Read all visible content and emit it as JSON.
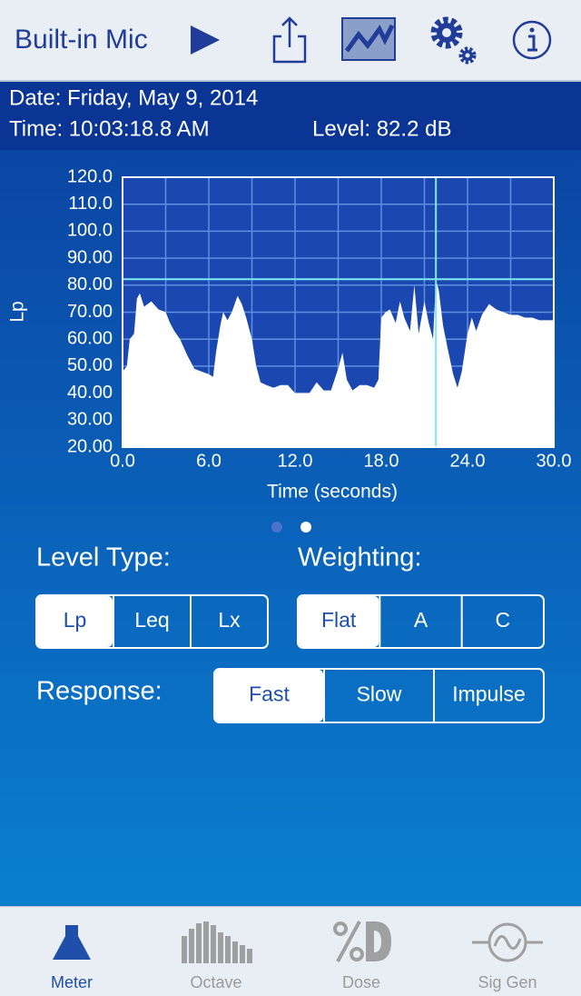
{
  "header": {
    "source": "Built-in Mic"
  },
  "info": {
    "date": "Date: Friday, May 9, 2014",
    "time": "Time: 10:03:18.8 AM",
    "level": "Level: 82.2 dB"
  },
  "chart_data": {
    "type": "area",
    "y_label": "Lp",
    "x_label": "Time (seconds)",
    "x": [
      0,
      0.3,
      0.5,
      0.8,
      1.0,
      1.2,
      1.5,
      2,
      2.5,
      3,
      3.3,
      3.6,
      4,
      4.5,
      5,
      5.5,
      6,
      6.3,
      6.5,
      6.8,
      7,
      7.3,
      7.6,
      8,
      8.3,
      8.6,
      9,
      9.3,
      9.6,
      10,
      10.5,
      11,
      11.5,
      12,
      12.5,
      13,
      13.5,
      14,
      14.5,
      15,
      15.3,
      15.6,
      16,
      16.5,
      17,
      17.5,
      17.8,
      18,
      18.3,
      18.6,
      19,
      19.3,
      19.6,
      20,
      20.3,
      20.6,
      21,
      21.3,
      21.6,
      21.8,
      22,
      22.3,
      22.6,
      23,
      23.3,
      23.6,
      24,
      24.3,
      24.6,
      25,
      25.5,
      26,
      26.5,
      27,
      27.5,
      28,
      28.5,
      29,
      29.5,
      30
    ],
    "values": [
      48,
      50,
      60,
      62,
      75,
      77,
      72,
      74,
      71,
      70,
      66,
      63,
      60,
      54,
      49,
      48,
      47,
      46,
      55,
      65,
      70,
      67,
      70,
      76,
      73,
      68,
      60,
      50,
      44,
      43,
      42,
      43,
      43,
      40,
      40,
      40,
      44,
      41,
      41,
      49,
      55,
      45,
      41,
      43,
      43,
      42,
      45,
      68,
      70,
      71,
      66,
      74,
      68,
      63,
      80,
      62,
      74,
      66,
      60,
      82,
      78,
      65,
      57,
      47,
      42,
      48,
      62,
      68,
      63,
      69,
      73,
      71,
      70,
      69,
      69,
      68,
      68,
      67,
      67,
      67
    ],
    "color": "#ffffff",
    "xlim": [
      0,
      30
    ],
    "ylim": [
      20,
      120
    ],
    "xticks": [
      {
        "value": 0,
        "label": "0.0"
      },
      {
        "value": 6,
        "label": "6.0"
      },
      {
        "value": 12,
        "label": "12.0"
      },
      {
        "value": 18,
        "label": "18.0"
      },
      {
        "value": 24,
        "label": "24.0"
      },
      {
        "value": 30,
        "label": "30.0"
      }
    ],
    "xminorticks": [
      3,
      9,
      15,
      21,
      27
    ],
    "yticks": [
      {
        "value": 120,
        "label": "120.0"
      },
      {
        "value": 110,
        "label": "110.0"
      },
      {
        "value": 100,
        "label": "100.0"
      },
      {
        "value": 90,
        "label": "90.00"
      },
      {
        "value": 80,
        "label": "80.00"
      },
      {
        "value": 70,
        "label": "70.00"
      },
      {
        "value": 60,
        "label": "60.00"
      },
      {
        "value": 50,
        "label": "50.00"
      },
      {
        "value": 40,
        "label": "40.00"
      },
      {
        "value": 30,
        "label": "30.00"
      },
      {
        "value": 20,
        "label": "20.00"
      }
    ],
    "grid": true,
    "cursor_x": 21.8,
    "cursor_y": 82.2
  },
  "controls": {
    "level_type": {
      "label": "Level Type:",
      "options": [
        "Lp",
        "Leq",
        "Lx"
      ],
      "selected": 0
    },
    "weighting": {
      "label": "Weighting:",
      "options": [
        "Flat",
        "A",
        "C"
      ],
      "selected": 0
    },
    "response": {
      "label": "Response:",
      "options": [
        "Fast",
        "Slow",
        "Impulse"
      ],
      "selected": 0
    }
  },
  "tabs": {
    "items": [
      "Meter",
      "Octave",
      "Dose",
      "Sig Gen"
    ],
    "selected": 0
  }
}
